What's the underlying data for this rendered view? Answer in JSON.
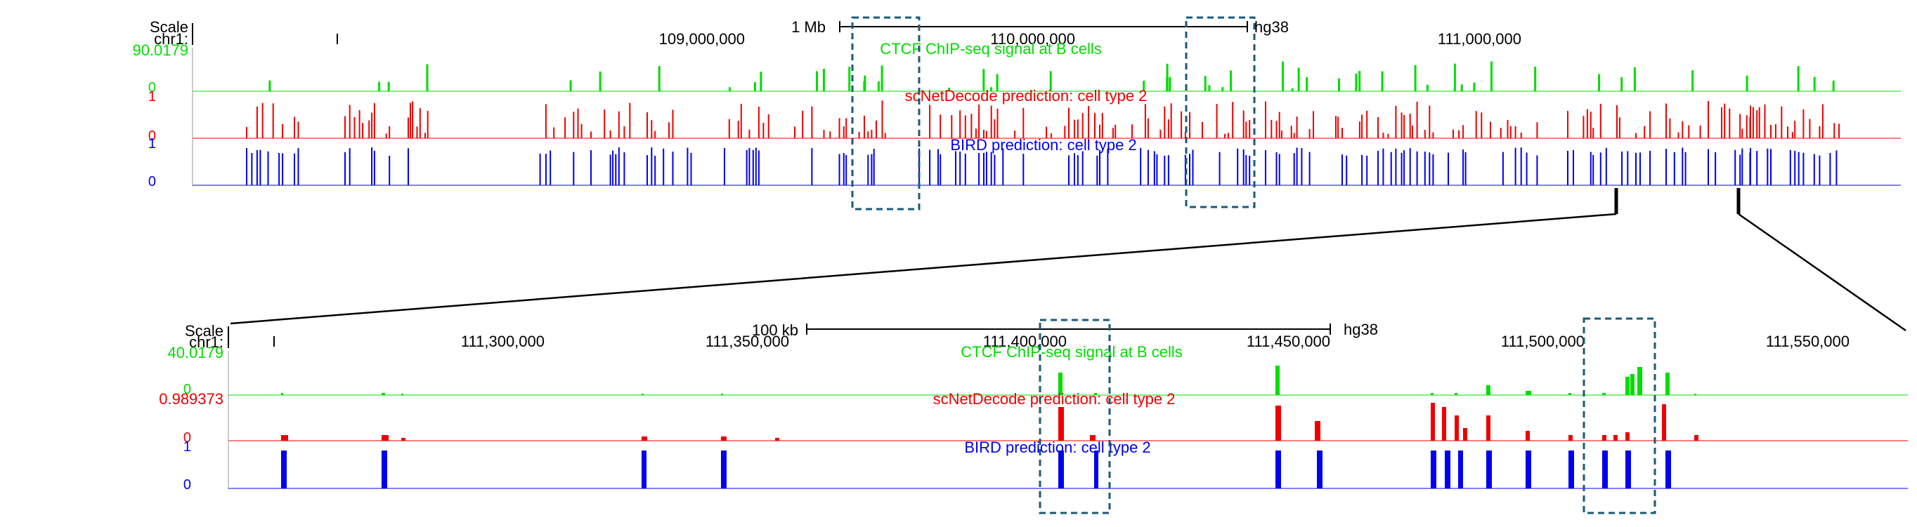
{
  "colors": {
    "ctcf": "#00dd00",
    "scnet": "#ee0000",
    "bird": "#0000ee",
    "highlight_box": "#1a5a78",
    "connector": "#000000",
    "text": "#000000"
  },
  "top_panel": {
    "scale_label": "Scale",
    "chrom_label": "chr1:",
    "scale_bar_label": "1 Mb",
    "assembly": "hg38",
    "positions": [
      "109,000,000",
      "110,000,000",
      "111,000,000"
    ],
    "tracks": {
      "ctcf": {
        "title": "CTCF ChIP-seq signal at B cells",
        "max_label": "90.0179",
        "min_label": "0"
      },
      "scnet": {
        "title": "scNetDecode prediction: cell type 2",
        "max_label": "1",
        "min_label": "0"
      },
      "bird": {
        "title": "BIRD prediction: cell type 2",
        "max_label": "1",
        "min_label": "0"
      }
    }
  },
  "bottom_panel": {
    "scale_label": "Scale",
    "chrom_label": "chr1:",
    "scale_bar_label": "100 kb",
    "assembly": "hg38",
    "positions": [
      "111,300,000",
      "111,350,000",
      "111,400,000",
      "111,450,000",
      "111,500,000",
      "111,550,000"
    ],
    "tracks": {
      "ctcf": {
        "title": "CTCF ChIP-seq signal at B cells",
        "max_label": "40.0179",
        "min_label": "0"
      },
      "scnet": {
        "title": "scNetDecode prediction: cell type 2",
        "max_label": "0.989373",
        "min_label": "0"
      },
      "bird": {
        "title": "BIRD prediction: cell type 2",
        "max_label": "1",
        "min_label": "0"
      }
    }
  }
}
